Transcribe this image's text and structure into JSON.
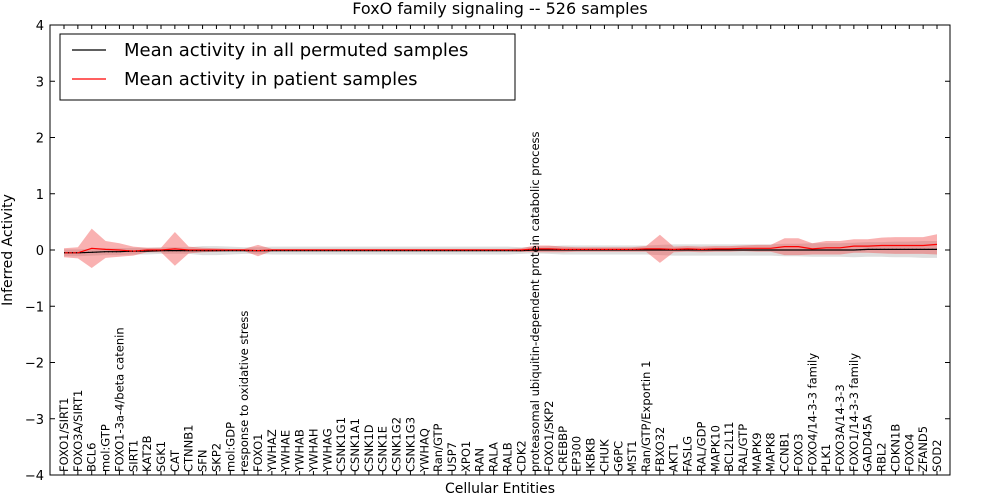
{
  "chart_data": {
    "type": "line",
    "title": "FoxO family signaling -- 526 samples",
    "xlabel": "Cellular Entities",
    "ylabel": "Inferred Activity",
    "ylim": [
      -4,
      4
    ],
    "yticks": [
      "−4",
      "−3",
      "−2",
      "−1",
      "0",
      "1",
      "2",
      "3",
      "4"
    ],
    "ytick_values": [
      -4,
      -3,
      -2,
      -1,
      0,
      1,
      2,
      3,
      4
    ],
    "legend_position": "top-left",
    "categories": [
      "FOXO1/SIRT1",
      "FOXO3A/SIRT1",
      "BCL6",
      "mol:GTP",
      "FOXO1-3a-4/beta catenin",
      "SIRT1",
      "KAT2B",
      "SGK1",
      "CAT",
      "CTNNB1",
      "SFN",
      "SKP2",
      "mol:GDP",
      "response to oxidative stress",
      "FOXO1",
      "YWHAZ",
      "YWHAE",
      "YWHAB",
      "YWHAH",
      "YWHAG",
      "CSNK1G1",
      "CSNK1A1",
      "CSNK1D",
      "CSNK1E",
      "CSNK1G2",
      "CSNK1G3",
      "YWHAQ",
      "Ran/GTP",
      "USP7",
      "XPO1",
      "RAN",
      "RALA",
      "RALB",
      "CDK2",
      "proteasomal ubiquitin-dependent protein catabolic process",
      "FOXO1/SKP2",
      "CREBBP",
      "EP300",
      "IKBKB",
      "CHUK",
      "G6PC",
      "MST1",
      "Ran/GTP/Exportin 1",
      "FBXO32",
      "AKT1",
      "FASLG",
      "RAL/GDP",
      "MAPK10",
      "BCL2L11",
      "RAL/GTP",
      "MAPK9",
      "MAPK8",
      "CCNB1",
      "FOXO3",
      "FOXO4/14-3-3 family",
      "PLK1",
      "FOXO3A/14-3-3",
      "FOXO1/14-3-3 family",
      "GADD45A",
      "RBL2",
      "CDKN1B",
      "FOXO4",
      "ZFAND5",
      "SOD2"
    ],
    "series": [
      {
        "name": "Mean activity in all permuted samples",
        "color": "#000000",
        "values": [
          -0.05,
          -0.05,
          -0.04,
          -0.03,
          -0.03,
          -0.02,
          -0.02,
          -0.01,
          -0.01,
          -0.01,
          -0.01,
          -0.01,
          -0.01,
          -0.01,
          -0.01,
          -0.01,
          -0.01,
          -0.01,
          -0.01,
          -0.01,
          -0.01,
          -0.01,
          -0.01,
          -0.01,
          -0.01,
          -0.01,
          -0.01,
          -0.01,
          -0.01,
          -0.01,
          -0.01,
          -0.01,
          -0.01,
          -0.01,
          0.0,
          0.0,
          0.0,
          0.0,
          0.0,
          0.0,
          0.0,
          0.0,
          0.0,
          0.0,
          0.0,
          0.0,
          0.0,
          0.0,
          0.0,
          0.0,
          0.0,
          0.0,
          0.0,
          0.0,
          0.0,
          0.0,
          0.0,
          0.0,
          0.01,
          0.01,
          0.01,
          0.01,
          0.01,
          0.01
        ],
        "band": [
          0.06,
          0.06,
          0.06,
          0.06,
          0.06,
          0.06,
          0.06,
          0.06,
          0.06,
          0.06,
          0.08,
          0.08,
          0.07,
          0.06,
          0.06,
          0.07,
          0.07,
          0.07,
          0.07,
          0.07,
          0.07,
          0.07,
          0.07,
          0.07,
          0.07,
          0.07,
          0.07,
          0.07,
          0.07,
          0.07,
          0.07,
          0.07,
          0.07,
          0.06,
          0.06,
          0.07,
          0.08,
          0.08,
          0.08,
          0.08,
          0.08,
          0.08,
          0.08,
          0.09,
          0.1,
          0.1,
          0.1,
          0.1,
          0.1,
          0.1,
          0.1,
          0.1,
          0.11,
          0.11,
          0.12,
          0.12,
          0.12,
          0.13,
          0.13,
          0.13,
          0.14,
          0.14,
          0.15,
          0.15
        ]
      },
      {
        "name": "Mean activity in patient samples",
        "color": "#ff0000",
        "values": [
          -0.05,
          -0.05,
          0.03,
          0.01,
          0.0,
          -0.02,
          0.0,
          0.0,
          0.02,
          0.0,
          0.0,
          0.0,
          0.0,
          0.0,
          -0.01,
          0.0,
          0.0,
          0.0,
          0.0,
          0.0,
          0.0,
          0.0,
          0.0,
          0.0,
          0.0,
          0.0,
          0.0,
          0.0,
          0.0,
          0.0,
          0.0,
          0.0,
          0.0,
          0.0,
          0.02,
          0.02,
          0.01,
          0.01,
          0.01,
          0.01,
          0.01,
          0.01,
          0.02,
          0.02,
          0.01,
          0.02,
          0.01,
          0.02,
          0.02,
          0.03,
          0.03,
          0.03,
          0.06,
          0.06,
          0.02,
          0.04,
          0.04,
          0.07,
          0.07,
          0.08,
          0.08,
          0.08,
          0.08,
          0.1
        ],
        "band": [
          0.08,
          0.1,
          0.35,
          0.15,
          0.12,
          0.08,
          0.04,
          0.04,
          0.3,
          0.06,
          0.04,
          0.03,
          0.02,
          0.02,
          0.1,
          0.02,
          0.02,
          0.02,
          0.02,
          0.02,
          0.02,
          0.02,
          0.02,
          0.02,
          0.02,
          0.02,
          0.02,
          0.02,
          0.02,
          0.02,
          0.02,
          0.02,
          0.02,
          0.03,
          0.06,
          0.06,
          0.05,
          0.04,
          0.04,
          0.04,
          0.04,
          0.04,
          0.05,
          0.25,
          0.05,
          0.05,
          0.05,
          0.05,
          0.05,
          0.05,
          0.06,
          0.06,
          0.15,
          0.15,
          0.1,
          0.12,
          0.12,
          0.12,
          0.12,
          0.14,
          0.15,
          0.15,
          0.15,
          0.18
        ]
      }
    ]
  }
}
